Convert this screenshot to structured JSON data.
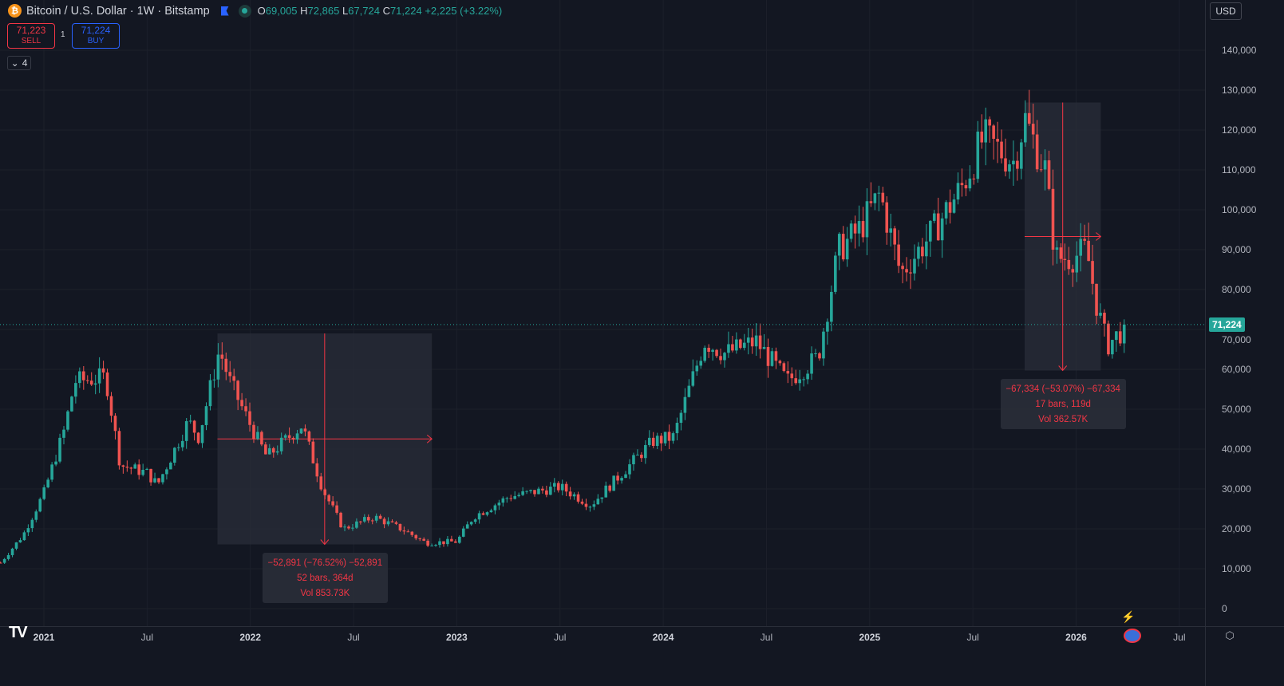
{
  "header": {
    "symbol": "Bitcoin / U.S. Dollar · 1W · Bitstamp",
    "o_label": "O",
    "open": "69,005",
    "h_label": "H",
    "high": "72,865",
    "l_label": "L",
    "low": "67,724",
    "c_label": "C",
    "close": "71,224",
    "change": "+2,225 (+3.22%)"
  },
  "trade": {
    "sell_price": "71,223",
    "sell_label": "SELL",
    "spread": "1",
    "buy_price": "71,224",
    "buy_label": "BUY"
  },
  "indicators_count": "4",
  "currency": "USD",
  "last_price": "71,224",
  "colors": {
    "up": "#26a69a",
    "down": "#ef5350",
    "bg": "#131722",
    "measure": "#f23645"
  },
  "measurements": [
    {
      "line1": "−52,891 (−76.52%) −52,891",
      "line2": "52 bars, 364d",
      "line3": "Vol 853.73K",
      "from": {
        "date": 2021.86,
        "price": 69000
      },
      "to": {
        "date": 2022.86,
        "price": 16100
      }
    },
    {
      "line1": "−67,334 (−53.07%) −67,334",
      "line2": "17 bars, 119d",
      "line3": "Vol 362.57K",
      "from": {
        "date": 2025.77,
        "price": 126900
      },
      "to": {
        "date": 2026.1,
        "price": 59700
      }
    }
  ],
  "chart_data": {
    "type": "candlestick",
    "title": "Bitcoin / U.S. Dollar · 1W · Bitstamp",
    "ylim": [
      0,
      140000
    ],
    "y_ticks": [
      "140,000",
      "130,000",
      "120,000",
      "110,000",
      "100,000",
      "90,000",
      "80,000",
      "70,000",
      "60,000",
      "50,000",
      "40,000",
      "30,000",
      "20,000",
      "10,000",
      "0"
    ],
    "y_tick_values": [
      140000,
      130000,
      120000,
      110000,
      100000,
      90000,
      80000,
      70000,
      60000,
      50000,
      40000,
      30000,
      20000,
      10000,
      0
    ],
    "x_ticks": [
      {
        "label": "2021",
        "date": 2021.0,
        "year": true
      },
      {
        "label": "Jul",
        "date": 2021.5
      },
      {
        "label": "2022",
        "date": 2022.0,
        "year": true
      },
      {
        "label": "Jul",
        "date": 2022.5
      },
      {
        "label": "2023",
        "date": 2023.0,
        "year": true
      },
      {
        "label": "Jul",
        "date": 2023.5
      },
      {
        "label": "2024",
        "date": 2024.0,
        "year": true
      },
      {
        "label": "Jul",
        "date": 2024.5
      },
      {
        "label": "2025",
        "date": 2025.0,
        "year": true
      },
      {
        "label": "Jul",
        "date": 2025.5
      },
      {
        "label": "2026",
        "date": 2026.0,
        "year": true
      },
      {
        "label": "Jul",
        "date": 2026.5
      }
    ],
    "close_anchors": [
      [
        2020.79,
        11500
      ],
      [
        2020.9,
        18500
      ],
      [
        2021.0,
        29000
      ],
      [
        2021.1,
        45000
      ],
      [
        2021.15,
        57000
      ],
      [
        2021.3,
        58000
      ],
      [
        2021.37,
        36000
      ],
      [
        2021.5,
        34000
      ],
      [
        2021.55,
        31000
      ],
      [
        2021.7,
        47000
      ],
      [
        2021.75,
        43000
      ],
      [
        2021.85,
        65000
      ],
      [
        2021.9,
        57000
      ],
      [
        2022.0,
        46000
      ],
      [
        2022.08,
        38000
      ],
      [
        2022.25,
        46000
      ],
      [
        2022.35,
        30000
      ],
      [
        2022.45,
        20000
      ],
      [
        2022.6,
        23000
      ],
      [
        2022.75,
        19500
      ],
      [
        2022.85,
        16500
      ],
      [
        2023.0,
        16800
      ],
      [
        2023.08,
        23000
      ],
      [
        2023.25,
        28000
      ],
      [
        2023.5,
        30500
      ],
      [
        2023.65,
        26000
      ],
      [
        2023.8,
        34000
      ],
      [
        2023.95,
        42000
      ],
      [
        2024.05,
        43000
      ],
      [
        2024.2,
        67000
      ],
      [
        2024.3,
        64000
      ],
      [
        2024.45,
        67000
      ],
      [
        2024.6,
        57000
      ],
      [
        2024.75,
        63000
      ],
      [
        2024.85,
        90000
      ],
      [
        2024.95,
        95000
      ],
      [
        2025.05,
        104000
      ],
      [
        2025.15,
        84000
      ],
      [
        2025.3,
        94000
      ],
      [
        2025.45,
        106000
      ],
      [
        2025.55,
        118000
      ],
      [
        2025.7,
        112000
      ],
      [
        2025.75,
        123000
      ],
      [
        2025.85,
        110000
      ],
      [
        2025.9,
        88000
      ],
      [
        2025.98,
        88000
      ],
      [
        2026.05,
        90000
      ],
      [
        2026.1,
        76000
      ],
      [
        2026.15,
        66000
      ],
      [
        2026.25,
        71224
      ]
    ],
    "last_price": 71224
  }
}
